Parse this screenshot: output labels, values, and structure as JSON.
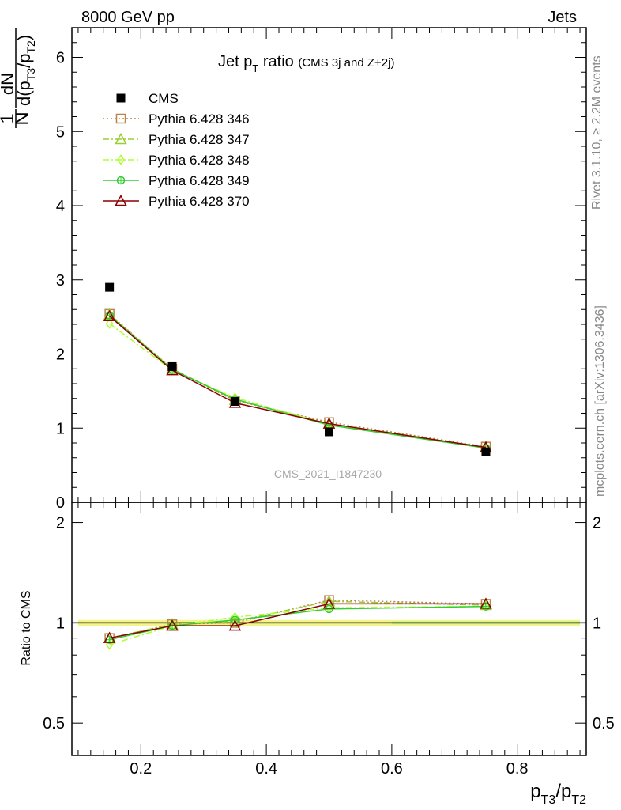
{
  "header": {
    "left": "8000 GeV pp",
    "right": "Jets"
  },
  "side_labels": {
    "rivet": "Rivet 3.1.10, ≥ 2.2M events",
    "mcplots": "mcplots.cern.ch [arXiv:1306.3436]"
  },
  "watermark": "CMS_2021_I1847230",
  "chart_data": [
    {
      "panel": "main",
      "type": "line",
      "title": {
        "prefix": "Jet p",
        "sub": "T",
        "mid": " ratio ",
        "suffix": "(CMS 3j and Z+2j)"
      },
      "ylabel": {
        "num": "1",
        "den": "N",
        "dn": "dN",
        "d": "d(p",
        "s1": "T3",
        "slash": "/p",
        "s2": "T2",
        "close": ")"
      },
      "xlim": [
        0.09,
        0.91
      ],
      "ylim": [
        0,
        6.4
      ],
      "yticks": [
        0,
        1,
        2,
        3,
        4,
        5,
        6
      ],
      "ytick_labels": [
        "0",
        "1",
        "2",
        "3",
        "4",
        "5",
        "6"
      ],
      "x": [
        0.15,
        0.25,
        0.35,
        0.5,
        0.75
      ],
      "data": {
        "name": "CMS",
        "values": [
          2.9,
          1.83,
          1.36,
          0.95,
          0.68
        ]
      },
      "series": [
        {
          "name": "Pythia 6.428 346",
          "color": "#b8864b",
          "dash": "2,3",
          "marker": "square-open",
          "values": [
            2.54,
            1.8,
            1.37,
            1.08,
            0.75
          ]
        },
        {
          "name": "Pythia 6.428 347",
          "color": "#9acd32",
          "dash": "8,3,2,3",
          "marker": "triangle-open",
          "values": [
            2.53,
            1.8,
            1.38,
            1.06,
            0.74
          ]
        },
        {
          "name": "Pythia 6.428 348",
          "color": "#adff2f",
          "dash": "8,3,2,3",
          "marker": "diamond-open",
          "values": [
            2.41,
            1.78,
            1.41,
            1.05,
            0.73
          ]
        },
        {
          "name": "Pythia 6.428 349",
          "color": "#32cd32",
          "dash": "",
          "marker": "circle-cross",
          "values": [
            2.52,
            1.79,
            1.39,
            1.04,
            0.73
          ]
        },
        {
          "name": "Pythia 6.428 370",
          "color": "#8b0000",
          "dash": "",
          "marker": "triangle-open",
          "values": [
            2.51,
            1.78,
            1.34,
            1.06,
            0.74
          ]
        }
      ]
    },
    {
      "panel": "ratio",
      "type": "line",
      "ylabel": "Ratio to CMS",
      "xlim": [
        0.09,
        0.91
      ],
      "ylim": [
        0.4,
        2.3
      ],
      "log_y": true,
      "yticks": [
        0.5,
        1,
        2
      ],
      "ytick_labels": [
        "0.5",
        "1",
        "2"
      ],
      "xticks": [
        0.2,
        0.4,
        0.6,
        0.8
      ],
      "xtick_labels": [
        "0.2",
        "0.4",
        "0.6",
        "0.8"
      ],
      "xlabel": {
        "p1": "p",
        "s1": "T3",
        "slash": "/p",
        "s2": "T2"
      },
      "x": [
        0.15,
        0.25,
        0.35,
        0.5,
        0.75
      ],
      "series": [
        {
          "name": "Pythia 6.428 346",
          "values": [
            0.9,
            0.99,
            1.0,
            1.17,
            1.14
          ]
        },
        {
          "name": "Pythia 6.428 347",
          "values": [
            0.9,
            0.99,
            1.01,
            1.16,
            1.13
          ]
        },
        {
          "name": "Pythia 6.428 348",
          "values": [
            0.86,
            0.98,
            1.04,
            1.11,
            1.12
          ]
        },
        {
          "name": "Pythia 6.428 349",
          "values": [
            0.89,
            0.98,
            1.02,
            1.1,
            1.12
          ]
        },
        {
          "name": "Pythia 6.428 370",
          "values": [
            0.9,
            0.98,
            0.98,
            1.14,
            1.14
          ]
        }
      ]
    }
  ]
}
